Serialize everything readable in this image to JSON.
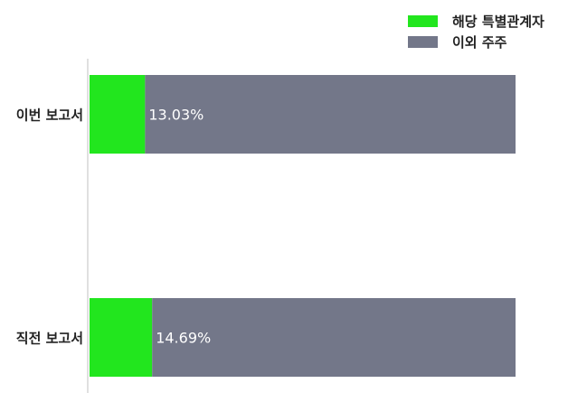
{
  "chart_data": {
    "type": "bar",
    "orientation": "horizontal",
    "stacked": true,
    "categories": [
      "이번 보고서",
      "직전 보고서"
    ],
    "series": [
      {
        "name": "해당 특별관계자",
        "values": [
          13.03,
          14.69
        ],
        "color": "#22e61e"
      },
      {
        "name": "이외 주주",
        "values": [
          86.97,
          85.31
        ],
        "color": "#737789"
      }
    ],
    "data_labels": [
      "13.03%",
      "14.69%"
    ],
    "xlim": [
      0,
      100
    ],
    "grid": false,
    "legend_position": "top-right"
  }
}
